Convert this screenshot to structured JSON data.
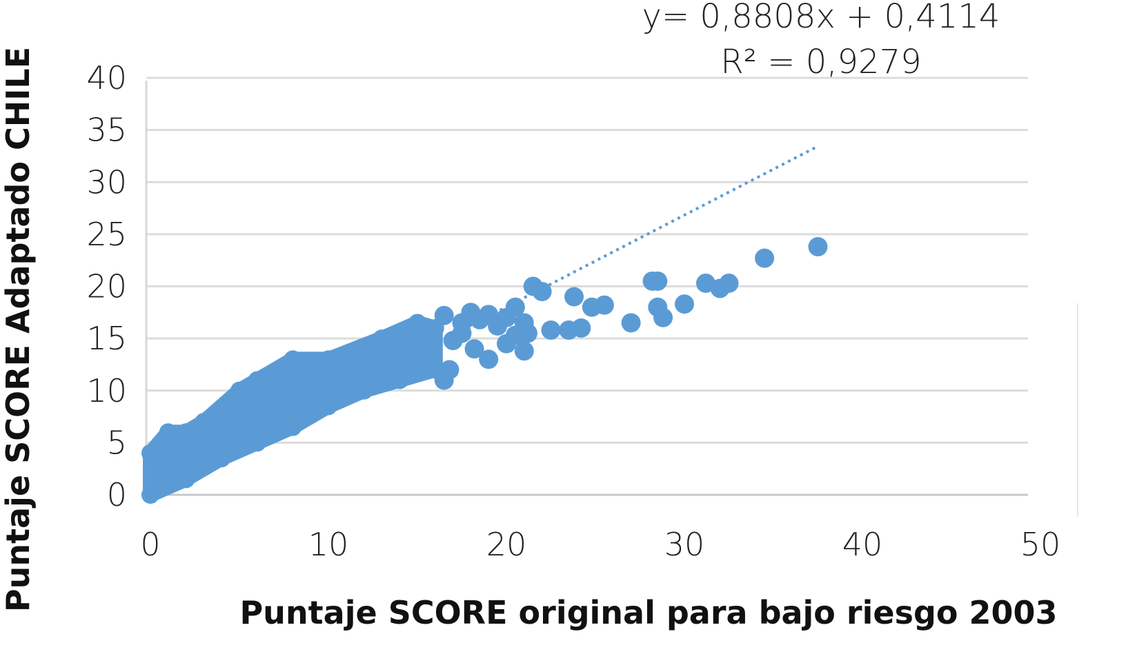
{
  "chart_data": {
    "type": "scatter",
    "title": "",
    "xlabel": "Puntaje SCORE original para bajo riesgo 2003",
    "ylabel": "Puntaje SCORE Adaptado CHILE",
    "xlim": [
      0,
      50
    ],
    "ylim": [
      0,
      40
    ],
    "x_ticks": [
      "0",
      "10",
      "20",
      "30",
      "40",
      "50"
    ],
    "y_ticks": [
      "0",
      "5",
      "10",
      "15",
      "20",
      "25",
      "30",
      "35",
      "40"
    ],
    "grid": "horizontal",
    "point_color": "#5b9bd5",
    "trendline": {
      "style": "dotted",
      "equation": "y= 0,8808x + 0,4114",
      "r_squared": "R² = 0,9279",
      "slope": 0.8808,
      "intercept": 0.4114,
      "x_range": [
        0,
        37.5
      ]
    },
    "dense_cloud": {
      "description_points_dense_region": "many overlapping points from x≈0 to x≈16",
      "x_range": [
        0,
        16
      ],
      "upper_envelope": [
        [
          0,
          4
        ],
        [
          1,
          6
        ],
        [
          2,
          6
        ],
        [
          3,
          7
        ],
        [
          5,
          10
        ],
        [
          6,
          11
        ],
        [
          8,
          13
        ],
        [
          10,
          13
        ],
        [
          13,
          15
        ],
        [
          15,
          16.5
        ],
        [
          16,
          16
        ]
      ],
      "lower_envelope": [
        [
          0,
          0
        ],
        [
          2,
          1.5
        ],
        [
          4,
          3.5
        ],
        [
          6,
          5
        ],
        [
          8,
          6.5
        ],
        [
          10,
          8.5
        ],
        [
          12,
          10
        ],
        [
          14,
          11
        ],
        [
          16,
          12
        ]
      ]
    },
    "points": [
      {
        "x": 16.5,
        "y": 17.2
      },
      {
        "x": 17.5,
        "y": 16.5
      },
      {
        "x": 18,
        "y": 17.5
      },
      {
        "x": 18.5,
        "y": 16.8
      },
      {
        "x": 19,
        "y": 17.3
      },
      {
        "x": 19.5,
        "y": 16.2
      },
      {
        "x": 20,
        "y": 17
      },
      {
        "x": 20.5,
        "y": 18
      },
      {
        "x": 21,
        "y": 16.5
      },
      {
        "x": 21.2,
        "y": 15.5
      },
      {
        "x": 20,
        "y": 14.5
      },
      {
        "x": 20.5,
        "y": 15.3
      },
      {
        "x": 21,
        "y": 13.8
      },
      {
        "x": 19,
        "y": 13
      },
      {
        "x": 18.2,
        "y": 14
      },
      {
        "x": 17.5,
        "y": 15.5
      },
      {
        "x": 16.5,
        "y": 11
      },
      {
        "x": 16.8,
        "y": 12
      },
      {
        "x": 17,
        "y": 14.8
      },
      {
        "x": 21.5,
        "y": 20
      },
      {
        "x": 22,
        "y": 19.5
      },
      {
        "x": 22.5,
        "y": 15.8
      },
      {
        "x": 23.5,
        "y": 15.8
      },
      {
        "x": 24.2,
        "y": 16
      },
      {
        "x": 23.8,
        "y": 19
      },
      {
        "x": 24.8,
        "y": 18
      },
      {
        "x": 25.5,
        "y": 18.2
      },
      {
        "x": 27,
        "y": 16.5
      },
      {
        "x": 28.2,
        "y": 20.5
      },
      {
        "x": 28.5,
        "y": 20.5
      },
      {
        "x": 28.5,
        "y": 18
      },
      {
        "x": 28.8,
        "y": 17
      },
      {
        "x": 30,
        "y": 18.3
      },
      {
        "x": 31.2,
        "y": 20.3
      },
      {
        "x": 32,
        "y": 19.8
      },
      {
        "x": 32.5,
        "y": 20.3
      },
      {
        "x": 34.5,
        "y": 22.7
      },
      {
        "x": 37.5,
        "y": 23.8
      }
    ]
  }
}
